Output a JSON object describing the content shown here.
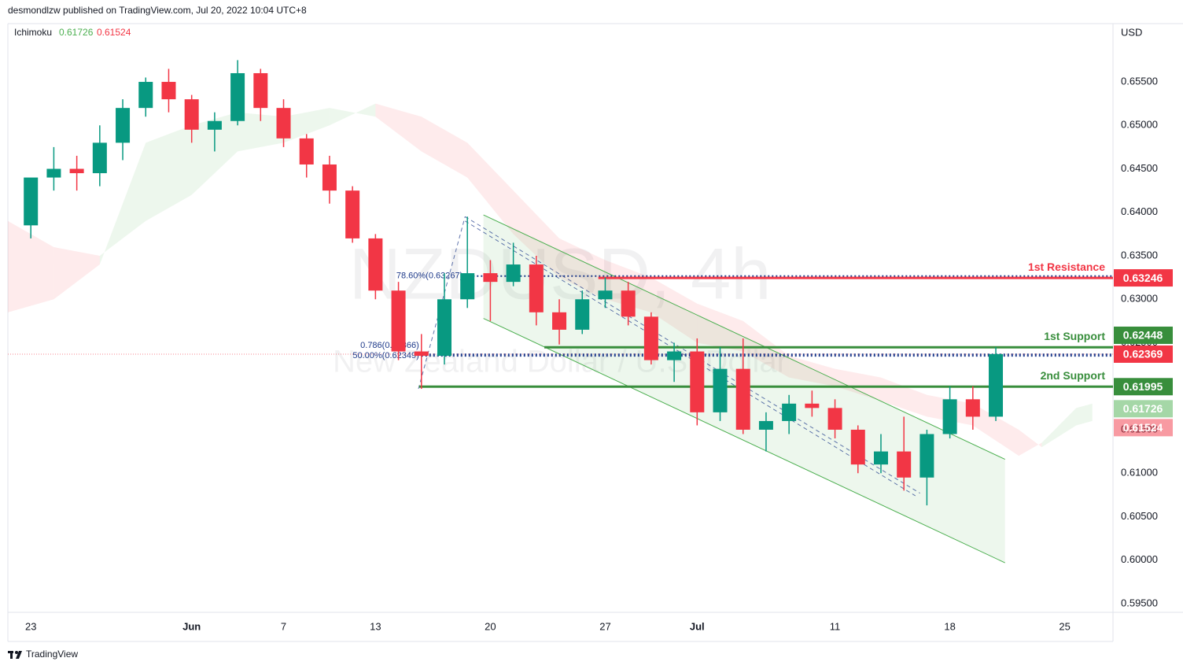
{
  "chart_data": {
    "type": "candlestick",
    "header": "desmondlzw published on TradingView.com, Jul 20, 2022 10:04 UTC+8",
    "watermark": {
      "symbol": "NZDUSD, 4h",
      "name": "New Zealand Dollar / U.S. Dollar"
    },
    "currency": "USD",
    "footer": "TradingView",
    "up_color": "#089981",
    "down_color": "#f23645",
    "xlim": [
      -1,
      47.1
    ],
    "ylim": [
      0.594,
      0.6617
    ],
    "grid": false,
    "xticks": [
      {
        "value": 0,
        "label": "23"
      },
      {
        "value": 7,
        "label": "Jun"
      },
      {
        "value": 11,
        "label": "7"
      },
      {
        "value": 15,
        "label": "13"
      },
      {
        "value": 20,
        "label": "20"
      },
      {
        "value": 25,
        "label": "27"
      },
      {
        "value": 29,
        "label": "Jul"
      },
      {
        "value": 35,
        "label": "11"
      },
      {
        "value": 40,
        "label": "18"
      },
      {
        "value": 45,
        "label": "25"
      }
    ],
    "yticks": [
      {
        "value": 0.595,
        "label": "0.59500"
      },
      {
        "value": 0.6,
        "label": "0.60000"
      },
      {
        "value": 0.605,
        "label": "0.60500"
      },
      {
        "value": 0.61,
        "label": "0.61000"
      },
      {
        "value": 0.615,
        "label": "0.61500"
      },
      {
        "value": 0.62,
        "label": "0.62000"
      },
      {
        "value": 0.625,
        "label": "0.62500"
      },
      {
        "value": 0.63,
        "label": "0.63000"
      },
      {
        "value": 0.635,
        "label": "0.63500"
      },
      {
        "value": 0.64,
        "label": "0.64000"
      },
      {
        "value": 0.645,
        "label": "0.64500"
      },
      {
        "value": 0.65,
        "label": "0.65000"
      },
      {
        "value": 0.655,
        "label": "0.65500"
      }
    ],
    "candles": {
      "x": [
        0,
        1,
        2,
        3,
        4,
        5,
        6,
        7,
        8,
        9,
        10,
        11,
        12,
        13,
        14,
        15,
        16,
        17,
        18,
        19,
        20,
        21,
        22,
        23,
        24,
        25,
        26,
        27,
        28,
        29,
        30,
        31,
        32,
        33,
        34,
        35,
        36,
        37,
        38,
        39,
        40,
        41,
        42
      ],
      "open": [
        0.6385,
        0.644,
        0.645,
        0.6445,
        0.648,
        0.652,
        0.655,
        0.653,
        0.6495,
        0.6505,
        0.656,
        0.652,
        0.6485,
        0.6455,
        0.6425,
        0.637,
        0.631,
        0.624,
        0.6235,
        0.63,
        0.633,
        0.632,
        0.634,
        0.6285,
        0.6265,
        0.63,
        0.631,
        0.628,
        0.623,
        0.624,
        0.617,
        0.622,
        0.615,
        0.616,
        0.618,
        0.6175,
        0.615,
        0.611,
        0.6125,
        0.6095,
        0.6145,
        0.6185,
        0.6165
      ],
      "high": [
        0.64,
        0.6475,
        0.6465,
        0.65,
        0.653,
        0.6555,
        0.6565,
        0.6535,
        0.6515,
        0.6575,
        0.6565,
        0.653,
        0.649,
        0.6465,
        0.643,
        0.6375,
        0.632,
        0.626,
        0.633,
        0.6395,
        0.6345,
        0.6365,
        0.635,
        0.63,
        0.631,
        0.6325,
        0.632,
        0.6285,
        0.625,
        0.6255,
        0.6245,
        0.6255,
        0.617,
        0.619,
        0.6195,
        0.6185,
        0.6155,
        0.6145,
        0.6165,
        0.615,
        0.62,
        0.62,
        0.6245
      ],
      "low": [
        0.637,
        0.6425,
        0.6425,
        0.643,
        0.646,
        0.651,
        0.6515,
        0.648,
        0.647,
        0.65,
        0.6505,
        0.6475,
        0.644,
        0.641,
        0.6365,
        0.63,
        0.623,
        0.6197,
        0.6225,
        0.629,
        0.6275,
        0.6315,
        0.627,
        0.6248,
        0.626,
        0.629,
        0.627,
        0.6225,
        0.6205,
        0.6155,
        0.616,
        0.6145,
        0.6125,
        0.6145,
        0.6165,
        0.614,
        0.61,
        0.61,
        0.608,
        0.6063,
        0.614,
        0.615,
        0.616
      ],
      "close": [
        0.644,
        0.645,
        0.6445,
        0.648,
        0.652,
        0.655,
        0.653,
        0.6495,
        0.6505,
        0.656,
        0.652,
        0.6485,
        0.6455,
        0.6425,
        0.637,
        0.631,
        0.624,
        0.6235,
        0.63,
        0.633,
        0.632,
        0.634,
        0.6285,
        0.6265,
        0.63,
        0.631,
        0.628,
        0.623,
        0.624,
        0.617,
        0.622,
        0.615,
        0.616,
        0.618,
        0.6175,
        0.615,
        0.611,
        0.6125,
        0.6095,
        0.6145,
        0.6185,
        0.6165,
        0.6237
      ]
    },
    "last": 0.62369,
    "last_color": "#f23645",
    "ichimoku": {
      "name": "Ichimoku",
      "last_a": 0.61726,
      "last_b": 0.61524,
      "up_color": "#4caf50",
      "down_color": "#f23645",
      "x": [
        -1,
        1,
        3,
        5,
        7,
        9,
        11,
        13,
        15,
        17,
        19,
        21,
        23,
        25,
        27,
        29,
        31,
        33,
        35,
        37,
        39,
        41,
        43,
        44,
        45.5,
        46.2
      ],
      "span_a": [
        0.6285,
        0.63,
        0.634,
        0.648,
        0.65,
        0.6515,
        0.651,
        0.652,
        0.651,
        0.647,
        0.644,
        0.6375,
        0.6325,
        0.63,
        0.6285,
        0.625,
        0.624,
        0.621,
        0.62,
        0.6183,
        0.6165,
        0.6155,
        0.612,
        0.6135,
        0.6175,
        0.618
      ],
      "span_b": [
        0.639,
        0.636,
        0.635,
        0.639,
        0.642,
        0.647,
        0.648,
        0.65,
        0.6525,
        0.651,
        0.648,
        0.6425,
        0.637,
        0.6345,
        0.6325,
        0.6295,
        0.6275,
        0.6235,
        0.622,
        0.621,
        0.619,
        0.618,
        0.615,
        0.613,
        0.6155,
        0.616
      ]
    },
    "channel": {
      "x": [
        19.7,
        42.4
      ],
      "upper": [
        0.6397,
        0.6116
      ],
      "lower": [
        0.6278,
        0.5997
      ],
      "color": "#4caf50"
    },
    "levels": [
      {
        "name": "1st Resistance",
        "value": 0.63246,
        "start": 24.7,
        "color": "#f23645"
      },
      {
        "name": "1st Support",
        "value": 0.62448,
        "start": 22.35,
        "color": "#388e3c"
      },
      {
        "name": "2nd Support",
        "value": 0.61995,
        "start": 16.9,
        "color": "#388e3c"
      }
    ],
    "fib": {
      "color": "#1e3a8a",
      "lines": [
        {
          "label": "78.60%(0.63267)",
          "value": 0.63267,
          "start": 18.9
        },
        {
          "label": "0.786(0.62366)",
          "value": 0.62366,
          "start": 17.0
        },
        {
          "label": "50.00%(0.62349)",
          "value": 0.62349,
          "start": 17.0
        }
      ]
    }
  }
}
